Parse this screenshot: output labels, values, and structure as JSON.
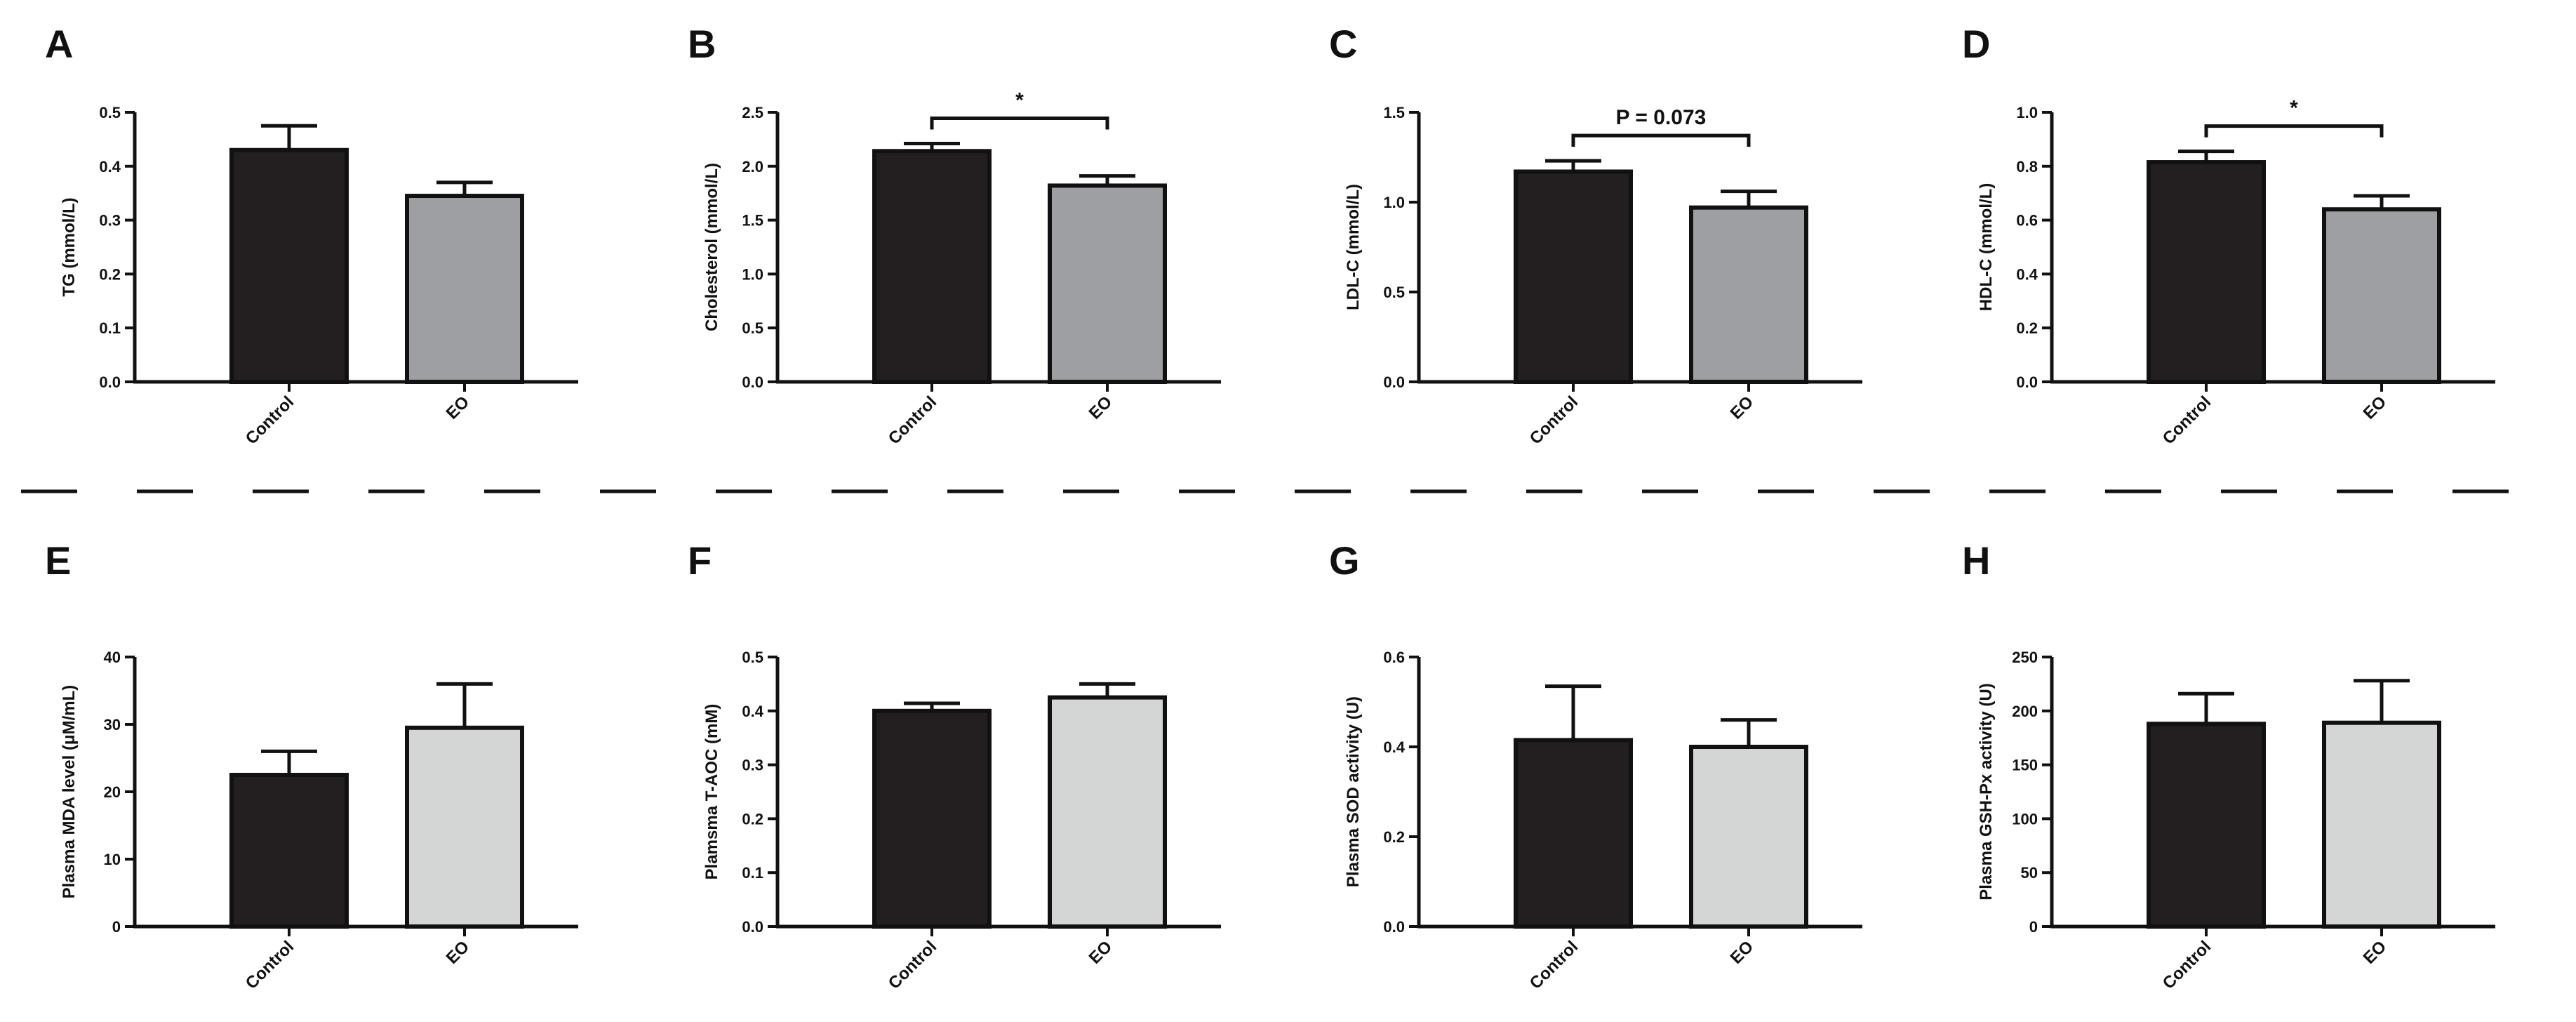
{
  "colors": {
    "control": "#231f20",
    "eo_gray": "#9d9fa3",
    "eo_light": "#d4d6d5",
    "ink": "#111111"
  },
  "chart_data": [
    {
      "panel": "A",
      "type": "bar",
      "categories": [
        "Control",
        "EO"
      ],
      "values": [
        0.43,
        0.345
      ],
      "errors": [
        0.045,
        0.025
      ],
      "ylabel": "TG (mmol/L)",
      "ylim": [
        0,
        0.5
      ],
      "ticks": [
        "0.0",
        "0.1",
        "0.2",
        "0.3",
        "0.4",
        "0.5"
      ],
      "bar_colors": [
        "control",
        "eo_gray"
      ],
      "annotation": ""
    },
    {
      "panel": "B",
      "type": "bar",
      "categories": [
        "Control",
        "EO"
      ],
      "values": [
        2.14,
        1.82
      ],
      "errors": [
        0.07,
        0.09
      ],
      "ylabel": "Cholesterol (mmol/L)",
      "ylim": [
        0,
        2.5
      ],
      "ticks": [
        "0.0",
        "0.5",
        "1.0",
        "1.5",
        "2.0",
        "2.5"
      ],
      "bar_colors": [
        "control",
        "eo_gray"
      ],
      "annotation": "*"
    },
    {
      "panel": "C",
      "type": "bar",
      "categories": [
        "Control",
        "EO"
      ],
      "values": [
        1.17,
        0.97
      ],
      "errors": [
        0.06,
        0.09
      ],
      "ylabel": "LDL-C (mmol/L)",
      "ylim": [
        0,
        1.5
      ],
      "ticks": [
        "0.0",
        "0.5",
        "1.0",
        "1.5"
      ],
      "bar_colors": [
        "control",
        "eo_gray"
      ],
      "annotation": "P = 0.073"
    },
    {
      "panel": "D",
      "type": "bar",
      "categories": [
        "Control",
        "EO"
      ],
      "values": [
        0.815,
        0.64
      ],
      "errors": [
        0.04,
        0.05
      ],
      "ylabel": "HDL-C (mmol/L)",
      "ylim": [
        0,
        1.0
      ],
      "ticks": [
        "0.0",
        "0.2",
        "0.4",
        "0.6",
        "0.8",
        "1.0"
      ],
      "bar_colors": [
        "control",
        "eo_gray"
      ],
      "annotation": "*"
    },
    {
      "panel": "E",
      "type": "bar",
      "categories": [
        "Control",
        "EO"
      ],
      "values": [
        22.5,
        29.5
      ],
      "errors": [
        3.5,
        6.5
      ],
      "ylabel": "Plasma MDA level (μM/mL)",
      "ylim": [
        0,
        40
      ],
      "ticks": [
        "0",
        "10",
        "20",
        "30",
        "40"
      ],
      "bar_colors": [
        "control",
        "eo_light"
      ],
      "annotation": ""
    },
    {
      "panel": "F",
      "type": "bar",
      "categories": [
        "Control",
        "EO"
      ],
      "values": [
        0.4,
        0.425
      ],
      "errors": [
        0.014,
        0.025
      ],
      "ylabel": "Plamsma T-AOC (mM)",
      "ylim": [
        0,
        0.5
      ],
      "ticks": [
        "0.0",
        "0.1",
        "0.2",
        "0.3",
        "0.4",
        "0.5"
      ],
      "bar_colors": [
        "control",
        "eo_light"
      ],
      "annotation": ""
    },
    {
      "panel": "G",
      "type": "bar",
      "categories": [
        "Control",
        "EO"
      ],
      "values": [
        0.415,
        0.4
      ],
      "errors": [
        0.12,
        0.06
      ],
      "ylabel": "Plasma SOD activity (U)",
      "ylim": [
        0,
        0.6
      ],
      "ticks": [
        "0.0",
        "0.2",
        "0.4",
        "0.6"
      ],
      "bar_colors": [
        "control",
        "eo_light"
      ],
      "annotation": ""
    },
    {
      "panel": "H",
      "type": "bar",
      "categories": [
        "Control",
        "EO"
      ],
      "values": [
        188,
        189
      ],
      "errors": [
        28,
        39
      ],
      "ylabel": "Plasma GSH-Px activity (U)",
      "ylim": [
        0,
        250
      ],
      "ticks": [
        "0",
        "50",
        "100",
        "150",
        "200",
        "250"
      ],
      "bar_colors": [
        "control",
        "eo_light"
      ],
      "annotation": ""
    }
  ]
}
